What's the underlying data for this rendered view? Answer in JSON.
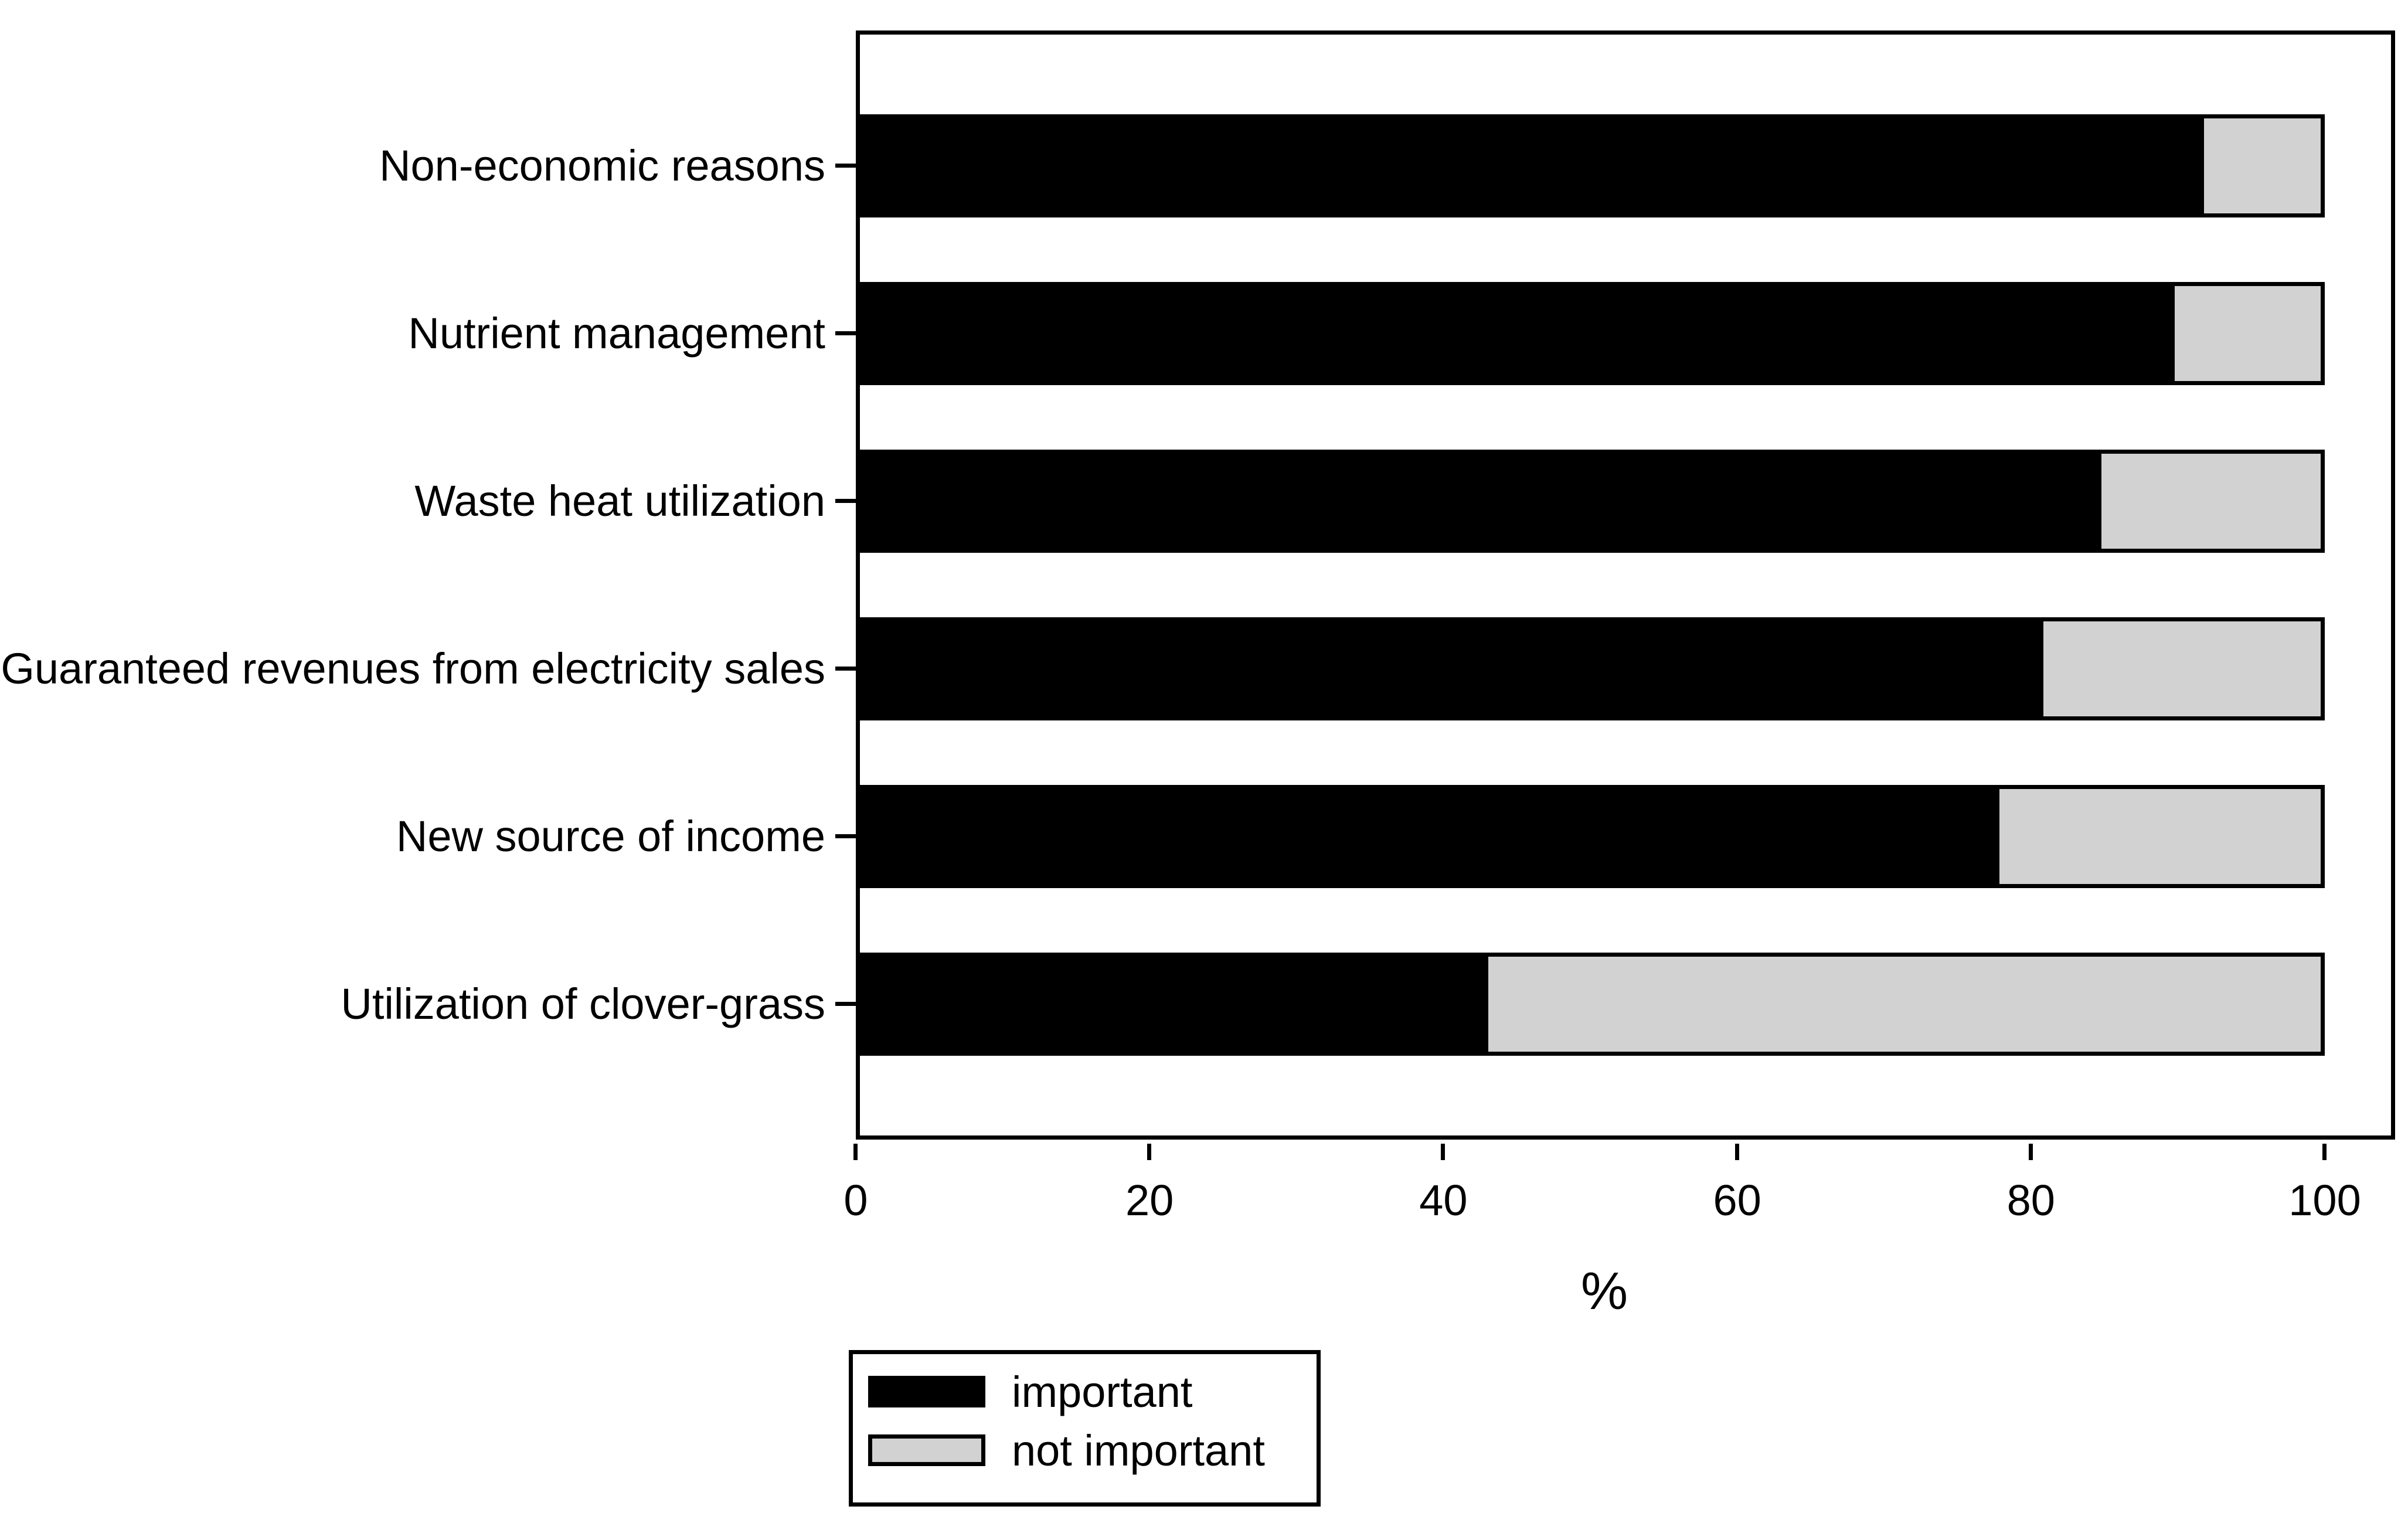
{
  "chart_data": {
    "type": "bar",
    "orientation": "horizontal",
    "stacked": true,
    "title": "",
    "categories": [
      "Non-economic reasons",
      "Nutrient management",
      "Waste heat utilization",
      "Guaranteed revenues from electricity sales",
      "New source of income",
      "Utilization of clover-grass"
    ],
    "series": [
      {
        "name": "important",
        "color": "#000000",
        "values": [
          92,
          90,
          85,
          81,
          78,
          43
        ]
      },
      {
        "name": "not important",
        "color": "#d2d2d2",
        "values": [
          8,
          10,
          15,
          19,
          22,
          57
        ]
      }
    ],
    "xlabel": "%",
    "x_ticks": [
      0,
      20,
      40,
      60,
      80,
      100
    ],
    "xlim": [
      0,
      104.8
    ],
    "grid": false,
    "legend_position": "below-left",
    "axis_color": "#000000",
    "bar_outline_color": "#000000",
    "background": "#ffffff"
  }
}
